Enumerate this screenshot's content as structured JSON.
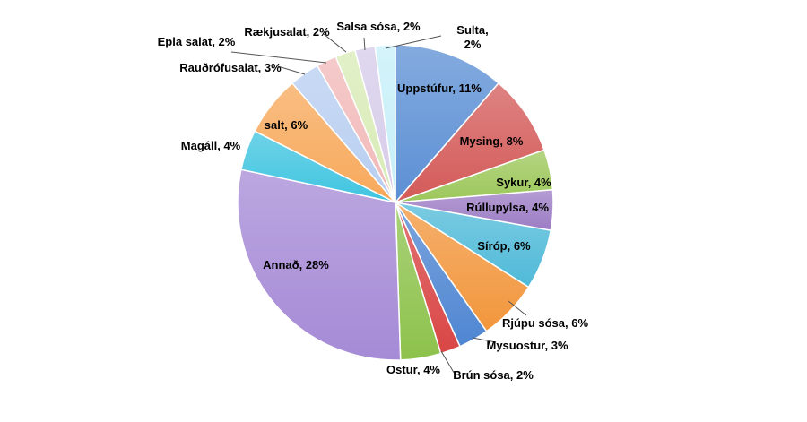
{
  "chart_data": {
    "type": "pie",
    "title": "",
    "unit": "%",
    "slices": [
      {
        "label": "Uppstúfur",
        "value": 11,
        "text": "Uppstúfur, 11%",
        "color": "#5b8fd4"
      },
      {
        "label": "Mysing",
        "value": 8,
        "text": "Mysing, 8%",
        "color": "#d35a58"
      },
      {
        "label": "Sykur",
        "value": 4,
        "text": "Sykur, 4%",
        "color": "#9cc75a"
      },
      {
        "label": "Rúllupylsa",
        "value": 4,
        "text": "Rúllupylsa, 4%",
        "color": "#9c7cc4"
      },
      {
        "label": "Síróp",
        "value": 6,
        "text": "Síróp, 6%",
        "color": "#4fbad8"
      },
      {
        "label": "Rjúpu sósa",
        "value": 6,
        "text": "Rjúpu sósa, 6%",
        "color": "#f2963c"
      },
      {
        "label": "Mysuostur",
        "value": 3,
        "text": "Mysuostur, 3%",
        "color": "#4f86d2"
      },
      {
        "label": "Brún sósa",
        "value": 2,
        "text": "Brún sósa, 2%",
        "color": "#d94545"
      },
      {
        "label": "Ostur",
        "value": 4,
        "text": "Ostur, 4%",
        "color": "#8dc24c"
      },
      {
        "label": "Annað",
        "value": 28,
        "text": "Annað, 28%",
        "color": "#a58ad6"
      },
      {
        "label": "Magáll",
        "value": 4,
        "text": "Magáll, 4%",
        "color": "#3fc4e0"
      },
      {
        "label": "salt",
        "value": 6,
        "text": "salt, 6%",
        "color": "#f7a85a"
      },
      {
        "label": "Rauðrófusalat",
        "value": 3,
        "text": "Rauðrófusalat, 3%",
        "color": "#b7cdf0"
      },
      {
        "label": "Epla salat",
        "value": 2,
        "text": "Epla salat, 2%",
        "color": "#f2b8b8"
      },
      {
        "label": "Rækjusalat",
        "value": 2,
        "text": "Rækjusalat, 2%",
        "color": "#d8ebb5"
      },
      {
        "label": "Salsa sósa",
        "value": 2,
        "text": "Salsa sósa, 2%",
        "color": "#d6cbe9"
      },
      {
        "label": "Sulta",
        "value": 2,
        "text": "Sulta,\n2%",
        "color": "#c6eff8"
      }
    ]
  }
}
